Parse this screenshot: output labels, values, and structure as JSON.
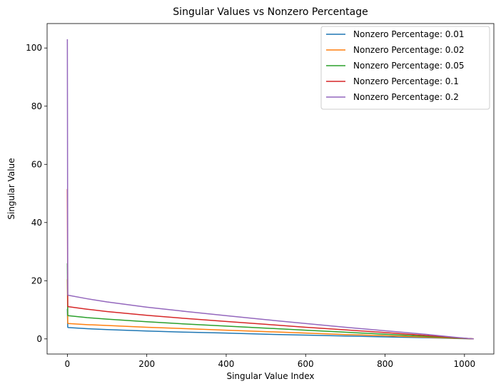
{
  "chart_data": {
    "type": "line",
    "title": "Singular Values vs Nonzero Percentage",
    "xlabel": "Singular Value Index",
    "ylabel": "Singular Value",
    "xlim": [
      -51,
      1074
    ],
    "ylim": [
      -5.2,
      108.4
    ],
    "xticks": [
      0,
      200,
      400,
      600,
      800,
      1000
    ],
    "yticks": [
      0,
      20,
      40,
      60,
      80,
      100
    ],
    "grid": false,
    "legend_position": "top-right",
    "series": [
      {
        "name": "Nonzero Percentage: 0.01",
        "color": "#1f77b4",
        "x": [
          0,
          1,
          2,
          50,
          100,
          200,
          300,
          400,
          500,
          600,
          700,
          800,
          900,
          980,
          1023
        ],
        "y": [
          10.3,
          4.0,
          3.9,
          3.5,
          3.2,
          2.7,
          2.3,
          2.0,
          1.6,
          1.3,
          1.0,
          0.7,
          0.4,
          0.15,
          0.0
        ]
      },
      {
        "name": "Nonzero Percentage: 0.02",
        "color": "#ff7f0e",
        "x": [
          0,
          1,
          2,
          50,
          100,
          200,
          300,
          400,
          500,
          600,
          700,
          800,
          900,
          980,
          1023
        ],
        "y": [
          20.5,
          5.4,
          5.3,
          4.9,
          4.6,
          4.0,
          3.5,
          3.0,
          2.5,
          2.0,
          1.5,
          1.1,
          0.6,
          0.2,
          0.0
        ]
      },
      {
        "name": "Nonzero Percentage: 0.05",
        "color": "#2ca02c",
        "x": [
          0,
          1,
          2,
          50,
          100,
          200,
          300,
          400,
          500,
          600,
          700,
          800,
          900,
          980,
          1023
        ],
        "y": [
          26.0,
          8.2,
          8.0,
          7.3,
          6.8,
          5.9,
          5.1,
          4.4,
          3.7,
          3.0,
          2.3,
          1.6,
          0.9,
          0.3,
          0.0
        ]
      },
      {
        "name": "Nonzero Percentage: 0.1",
        "color": "#d62728",
        "x": [
          0,
          1,
          2,
          50,
          100,
          200,
          300,
          400,
          500,
          600,
          700,
          800,
          900,
          980,
          1023
        ],
        "y": [
          51.5,
          11.3,
          11.1,
          10.2,
          9.4,
          8.1,
          7.0,
          6.0,
          5.0,
          4.0,
          3.1,
          2.2,
          1.2,
          0.4,
          0.0
        ]
      },
      {
        "name": "Nonzero Percentage: 0.2",
        "color": "#9467bd",
        "x": [
          0,
          1,
          2,
          50,
          100,
          200,
          300,
          400,
          500,
          600,
          700,
          800,
          900,
          980,
          1023
        ],
        "y": [
          103.0,
          15.2,
          15.0,
          13.8,
          12.7,
          10.9,
          9.4,
          8.0,
          6.6,
          5.3,
          4.0,
          2.8,
          1.6,
          0.5,
          0.0
        ]
      }
    ]
  }
}
